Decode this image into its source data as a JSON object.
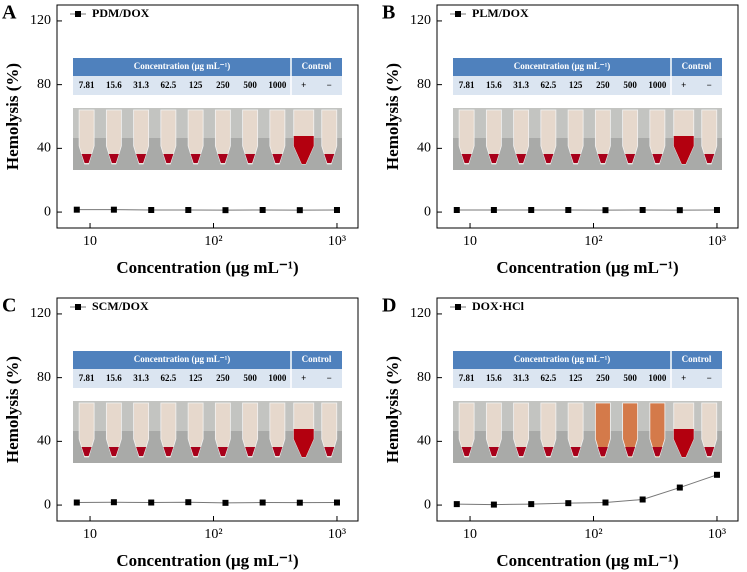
{
  "chart_data": [
    {
      "type": "line",
      "panel_label": "A",
      "xscale": "log",
      "xlim": [
        5.4,
        1480
      ],
      "ylim": [
        -10,
        130
      ],
      "xticks": [
        10,
        {
          "value": 100,
          "label": "10²"
        },
        {
          "value": 1000,
          "label": "10³"
        }
      ],
      "yticks": [
        0,
        40,
        80,
        120
      ],
      "xlabel": "Concentration (μg mL⁻¹)",
      "ylabel": "Hemolysis (%)",
      "legend": "upper left",
      "x": [
        7.81,
        15.6,
        31.3,
        62.5,
        125,
        250,
        500,
        1000
      ],
      "series": [
        {
          "name": "PDM/DOX",
          "color": "#000000",
          "values": [
            1.5,
            1.5,
            1.3,
            1.3,
            1.2,
            1.3,
            1.2,
            1.3
          ]
        }
      ],
      "inset": {
        "header": [
          "Concentration (μg mL⁻¹)",
          "Control"
        ],
        "row": [
          "7.81",
          "15.6",
          "31.3",
          "62.5",
          "125",
          "250",
          "500",
          "1000",
          "+",
          "−"
        ]
      }
    },
    {
      "type": "line",
      "panel_label": "B",
      "xscale": "log",
      "xlim": [
        5.4,
        1480
      ],
      "ylim": [
        -10,
        130
      ],
      "xticks": [
        10,
        {
          "value": 100,
          "label": "10²"
        },
        {
          "value": 1000,
          "label": "10³"
        }
      ],
      "yticks": [
        0,
        40,
        80,
        120
      ],
      "xlabel": "Concentration (μg mL⁻¹)",
      "ylabel": "Hemolysis (%)",
      "legend": "upper left",
      "x": [
        7.81,
        15.6,
        31.3,
        62.5,
        125,
        250,
        500,
        1000
      ],
      "series": [
        {
          "name": "PLM/DOX",
          "color": "#000000",
          "values": [
            1.3,
            1.3,
            1.3,
            1.3,
            1.2,
            1.3,
            1.2,
            1.3
          ]
        }
      ],
      "inset": {
        "header": [
          "Concentration (μg mL⁻¹)",
          "Control"
        ],
        "row": [
          "7.81",
          "15.6",
          "31.3",
          "62.5",
          "125",
          "250",
          "500",
          "1000",
          "+",
          "−"
        ]
      }
    },
    {
      "type": "line",
      "panel_label": "C",
      "xscale": "log",
      "xlim": [
        5.4,
        1480
      ],
      "ylim": [
        -10,
        130
      ],
      "xticks": [
        10,
        {
          "value": 100,
          "label": "10²"
        },
        {
          "value": 1000,
          "label": "10³"
        }
      ],
      "yticks": [
        0,
        40,
        80,
        120
      ],
      "xlabel": "Concentration (μg mL⁻¹)",
      "ylabel": "Hemolysis (%)",
      "legend": "upper left",
      "x": [
        7.81,
        15.6,
        31.3,
        62.5,
        125,
        250,
        500,
        1000
      ],
      "series": [
        {
          "name": "SCM/DOX",
          "color": "#000000",
          "values": [
            1.6,
            1.8,
            1.6,
            1.8,
            1.4,
            1.6,
            1.5,
            1.6
          ]
        }
      ],
      "inset": {
        "header": [
          "Concentration (μg mL⁻¹)",
          "Control"
        ],
        "row": [
          "7.81",
          "15.6",
          "31.3",
          "62.5",
          "125",
          "250",
          "500",
          "1000",
          "+",
          "−"
        ]
      }
    },
    {
      "type": "line",
      "panel_label": "D",
      "xscale": "log",
      "xlim": [
        5.4,
        1480
      ],
      "ylim": [
        -10,
        130
      ],
      "xticks": [
        10,
        {
          "value": 100,
          "label": "10²"
        },
        {
          "value": 1000,
          "label": "10³"
        }
      ],
      "yticks": [
        0,
        40,
        80,
        120
      ],
      "xlabel": "Concentration (μg mL⁻¹)",
      "ylabel": "Hemolysis (%)",
      "legend": "upper left",
      "x": [
        7.81,
        15.6,
        31.3,
        62.5,
        125,
        250,
        500,
        1000
      ],
      "series": [
        {
          "name": "DOX·HCl",
          "color": "#000000",
          "values": [
            0.6,
            0.3,
            0.6,
            1.2,
            1.6,
            3.5,
            11,
            19
          ]
        }
      ],
      "inset": {
        "header": [
          "Concentration (μg mL⁻¹)",
          "Control"
        ],
        "row": [
          "7.81",
          "15.6",
          "31.3",
          "62.5",
          "125",
          "250",
          "500",
          "1000",
          "+",
          "−"
        ]
      }
    }
  ]
}
